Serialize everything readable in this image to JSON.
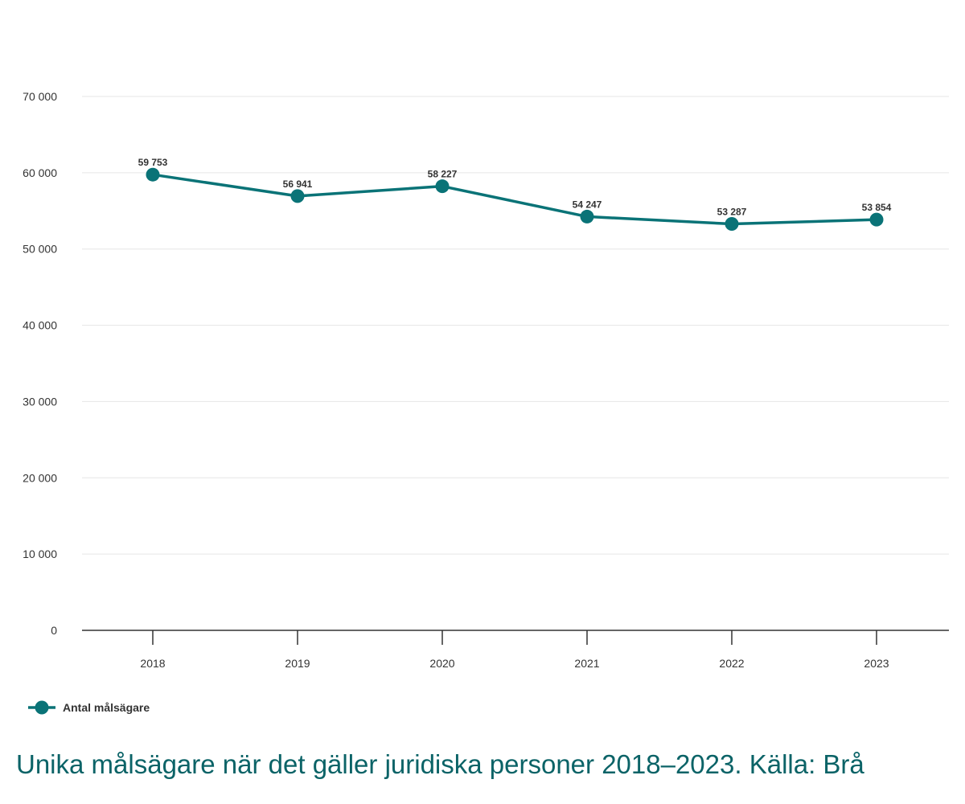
{
  "chart_data": {
    "type": "line",
    "title": "",
    "xlabel": "",
    "ylabel": "",
    "categories": [
      "2018",
      "2019",
      "2020",
      "2021",
      "2022",
      "2023"
    ],
    "series": [
      {
        "name": "Antal målsägare",
        "values": [
          59753,
          56941,
          58227,
          54247,
          53287,
          53854
        ],
        "value_labels": [
          "59 753",
          "56 941",
          "58 227",
          "54 247",
          "53 287",
          "53 854"
        ],
        "color": "#0a7377"
      }
    ],
    "ylim": [
      0,
      70000
    ],
    "y_ticks": [
      0,
      10000,
      20000,
      30000,
      40000,
      50000,
      60000,
      70000
    ],
    "y_tick_labels": [
      "0",
      "10 000",
      "20 000",
      "30 000",
      "40 000",
      "50 000",
      "60 000",
      "70 000"
    ],
    "grid": true,
    "legend_position": "bottom-left",
    "colors": {
      "grid": "#e6e6e6",
      "axis": "#333333",
      "caption": "#0b6367"
    }
  },
  "caption": "Unika målsägare när det gäller juridiska personer 2018–2023. Källa: Brå"
}
